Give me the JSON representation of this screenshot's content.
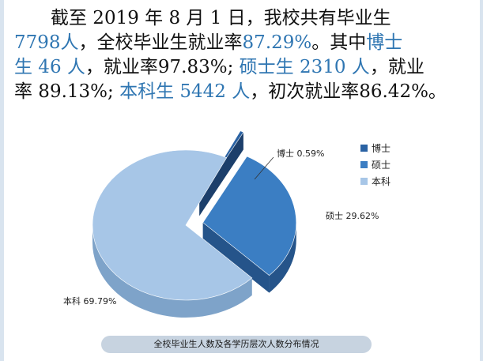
{
  "headline": {
    "l1": "截至 2019 年 8 月 1 日，我校共有毕业生",
    "l2a": "7798人",
    "l2b": "，全校毕业生就业率",
    "l2c": "87.29%",
    "l2d": "。其中",
    "l2e": "博士",
    "l3a": "生 46 人",
    "l3b": "，就业率97.83%; ",
    "l3c": "硕士生 2310 人",
    "l3d": "，就业",
    "l4a": "率 89.13%; ",
    "l4b": "本科生 5442 人",
    "l4c": "，初次就业率86.42%。"
  },
  "chart_data": {
    "type": "pie",
    "exploded": true,
    "style": "3d",
    "categories": [
      "博士",
      "硕士",
      "本科"
    ],
    "values": [
      0.59,
      29.62,
      69.79
    ],
    "data_labels": [
      "博士 0.59%",
      "硕士 29.62%",
      "本科 69.79%"
    ],
    "legend": {
      "position": "right",
      "entries": [
        "博士",
        "硕士",
        "本科"
      ]
    },
    "colors": [
      "#2a62a3",
      "#3b7ec3",
      "#a7c6e7"
    ],
    "side_colors": [
      "#1c3f6b",
      "#25548a",
      "#7ea3c9"
    ]
  },
  "caption": "全校毕业生人数及各学历层次人数分布情况"
}
